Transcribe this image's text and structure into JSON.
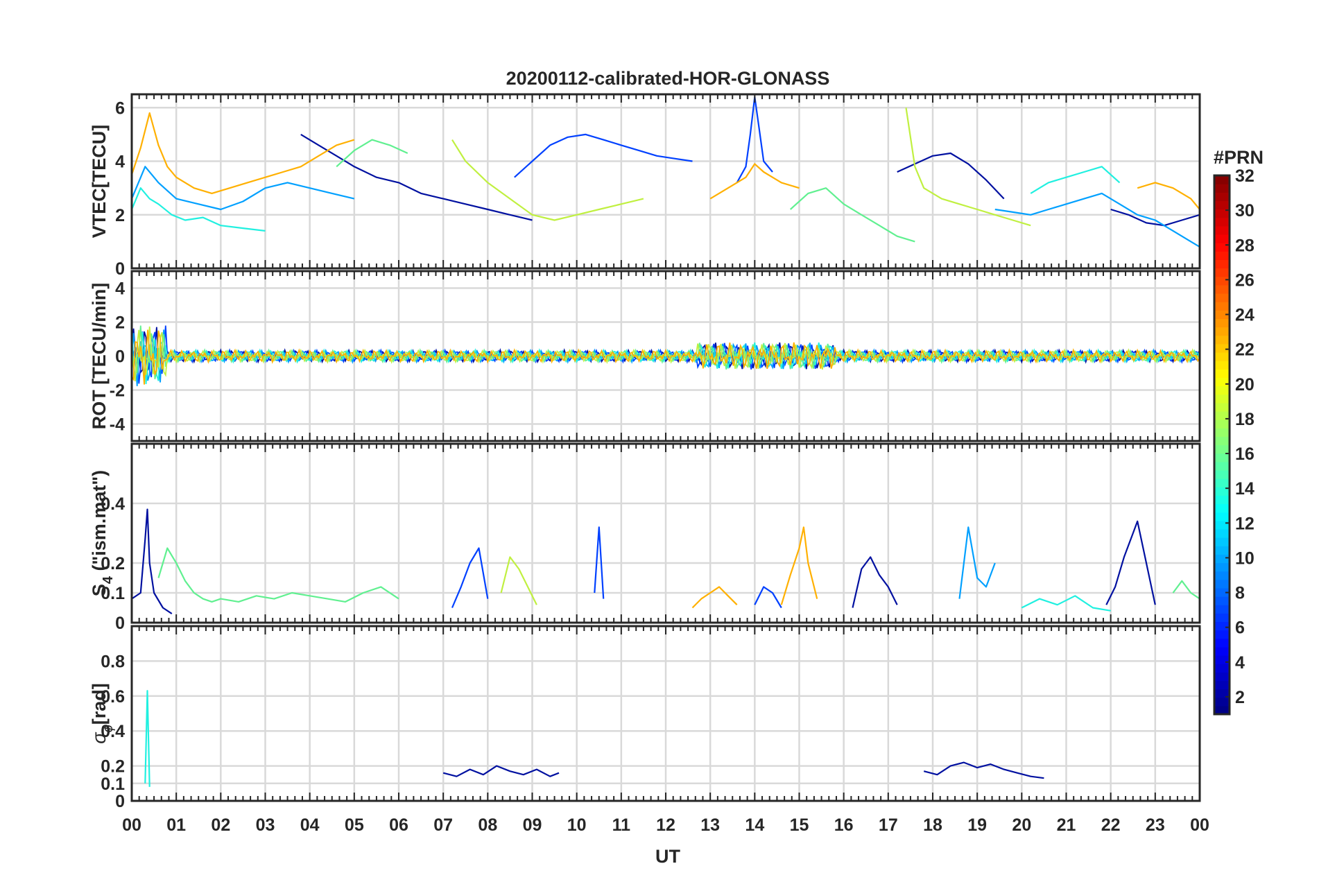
{
  "title": "20200112-calibrated-HOR-GLONASS",
  "x_axis": {
    "label": "UT",
    "ticks": [
      "00",
      "01",
      "02",
      "03",
      "04",
      "05",
      "06",
      "07",
      "08",
      "09",
      "10",
      "11",
      "12",
      "13",
      "14",
      "15",
      "16",
      "17",
      "18",
      "19",
      "20",
      "21",
      "22",
      "23",
      "00"
    ],
    "range": [
      0,
      24
    ],
    "unit": "hours"
  },
  "panels": [
    {
      "id": "vtec",
      "ylabel": "VTEC[TECU]",
      "ylim": [
        0,
        6.5
      ],
      "yticks": [
        "0",
        "2",
        "4",
        "6"
      ],
      "ytick_values": [
        0,
        2,
        4,
        6
      ]
    },
    {
      "id": "rot",
      "ylabel": "ROT [TECU/min]",
      "ylim": [
        -5,
        5
      ],
      "yticks": [
        "-4",
        "-2",
        "0",
        "2",
        "4"
      ],
      "ytick_values": [
        -4,
        -2,
        0,
        2,
        4
      ]
    },
    {
      "id": "s4",
      "ylabel_main": "S",
      "ylabel_sub": "4",
      "ylabel_rest": " (\"ism.mat\")",
      "ylim": [
        0,
        0.6
      ],
      "yticks": [
        "0",
        "0.1",
        "0.2",
        "0.4"
      ],
      "ytick_values": [
        0,
        0.1,
        0.2,
        0.4
      ]
    },
    {
      "id": "sigma",
      "ylabel_main": "σ",
      "ylabel_sub": "ϕ",
      "ylabel_rest": "[rad]",
      "ylim": [
        0,
        1.0
      ],
      "yticks": [
        "0",
        "0.1",
        "0.2",
        "0.4",
        "0.6",
        "0.8"
      ],
      "ytick_values": [
        0,
        0.1,
        0.2,
        0.4,
        0.6,
        0.8
      ]
    }
  ],
  "colorbar": {
    "title": "#PRN",
    "range": [
      1,
      32
    ],
    "ticks": [
      "2",
      "4",
      "6",
      "8",
      "10",
      "12",
      "14",
      "16",
      "18",
      "20",
      "22",
      "24",
      "26",
      "28",
      "30",
      "32"
    ],
    "tick_values": [
      2,
      4,
      6,
      8,
      10,
      12,
      14,
      16,
      18,
      20,
      22,
      24,
      26,
      28,
      30,
      32
    ],
    "colormap": "jet"
  },
  "chart_data": {
    "type": "line",
    "title": "20200112-calibrated-HOR-GLONASS",
    "xlabel": "UT",
    "xlim": [
      0,
      24
    ],
    "grid": true,
    "legend": "colorbar-right",
    "series": [
      {
        "prn": 2,
        "color": "#0010A0",
        "vtec": {
          "x": [
            3.8,
            4.2,
            4.6,
            5.0,
            5.5,
            6.0,
            6.5,
            7.0,
            7.5,
            8.0,
            8.5,
            9.0
          ],
          "y": [
            5.0,
            4.6,
            4.2,
            3.8,
            3.4,
            3.2,
            2.8,
            2.6,
            2.4,
            2.2,
            2.0,
            1.8
          ]
        },
        "vtec2": {
          "x": [
            17.2,
            17.6,
            18.0,
            18.4,
            18.8,
            19.2,
            19.6
          ],
          "y": [
            3.6,
            3.9,
            4.2,
            4.3,
            3.9,
            3.3,
            2.6
          ]
        },
        "vtec3": {
          "x": [
            22.0,
            22.4,
            22.8,
            23.2,
            23.6,
            24.0
          ],
          "y": [
            2.2,
            2.0,
            1.7,
            1.6,
            1.8,
            2.0
          ]
        },
        "s4": {
          "x": [
            0.0,
            0.2,
            0.3,
            0.35,
            0.4,
            0.5,
            0.7,
            0.9
          ],
          "y": [
            0.08,
            0.1,
            0.28,
            0.38,
            0.2,
            0.1,
            0.05,
            0.03
          ]
        },
        "s4b": {
          "x": [
            16.2,
            16.4,
            16.6,
            16.8,
            17.0,
            17.2
          ],
          "y": [
            0.05,
            0.18,
            0.22,
            0.16,
            0.12,
            0.06
          ]
        },
        "s4c": {
          "x": [
            21.9,
            22.1,
            22.3,
            22.5,
            22.6,
            22.8,
            23.0
          ],
          "y": [
            0.06,
            0.12,
            0.22,
            0.3,
            0.34,
            0.2,
            0.06
          ]
        },
        "sigma": {
          "x": [
            7.0,
            7.3,
            7.6,
            7.9,
            8.2,
            8.5,
            8.8,
            9.1,
            9.4,
            9.6
          ],
          "y": [
            0.16,
            0.14,
            0.18,
            0.15,
            0.2,
            0.17,
            0.15,
            0.18,
            0.14,
            0.16
          ]
        },
        "sigmab": {
          "x": [
            17.8,
            18.1,
            18.4,
            18.7,
            19.0,
            19.3,
            19.6,
            19.9,
            20.2,
            20.5
          ],
          "y": [
            0.17,
            0.15,
            0.2,
            0.22,
            0.19,
            0.21,
            0.18,
            0.16,
            0.14,
            0.13
          ]
        }
      },
      {
        "prn": 5,
        "color": "#0040FF",
        "vtec": {
          "x": [
            8.6,
            9.0,
            9.4,
            9.8,
            10.2,
            10.6,
            11.0,
            11.4,
            11.8,
            12.2,
            12.6
          ],
          "y": [
            3.4,
            4.0,
            4.6,
            4.9,
            5.0,
            4.8,
            4.6,
            4.4,
            4.2,
            4.1,
            4.0
          ]
        },
        "vtec2": {
          "x": [
            13.6,
            13.8,
            13.9,
            14.0,
            14.1,
            14.2,
            14.4
          ],
          "y": [
            3.2,
            3.8,
            5.0,
            6.4,
            5.2,
            4.0,
            3.6
          ]
        },
        "s4": {
          "x": [
            7.2,
            7.4,
            7.6,
            7.8,
            8.0
          ],
          "y": [
            0.05,
            0.12,
            0.2,
            0.25,
            0.08
          ]
        },
        "s4b": {
          "x": [
            14.0,
            14.2,
            14.4,
            14.6
          ],
          "y": [
            0.06,
            0.12,
            0.1,
            0.05
          ]
        },
        "s4c": {
          "x": [
            10.4,
            10.5,
            10.6
          ],
          "y": [
            0.1,
            0.32,
            0.08
          ]
        }
      },
      {
        "prn": 9,
        "color": "#00A0FF",
        "vtec": {
          "x": [
            0.0,
            0.3,
            0.6,
            1.0,
            1.5,
            2.0,
            2.5,
            3.0,
            3.5,
            4.0,
            4.5,
            5.0
          ],
          "y": [
            2.6,
            3.8,
            3.2,
            2.6,
            2.4,
            2.2,
            2.5,
            3.0,
            3.2,
            3.0,
            2.8,
            2.6
          ]
        },
        "vtec2": {
          "x": [
            19.4,
            19.8,
            20.2,
            20.6,
            21.0,
            21.4,
            21.8,
            22.2,
            22.6,
            23.0,
            23.4,
            23.8,
            24.0
          ],
          "y": [
            2.2,
            2.1,
            2.0,
            2.2,
            2.4,
            2.6,
            2.8,
            2.4,
            2.0,
            1.8,
            1.4,
            1.0,
            0.8
          ]
        },
        "s4": {
          "x": [
            18.6,
            18.8,
            19.0,
            19.2,
            19.4
          ],
          "y": [
            0.08,
            0.32,
            0.15,
            0.12,
            0.2
          ]
        }
      },
      {
        "prn": 13,
        "color": "#20F0E0",
        "vtec": {
          "x": [
            0.0,
            0.2,
            0.4,
            0.6,
            0.9,
            1.2,
            1.6,
            2.0,
            2.5,
            3.0
          ],
          "y": [
            2.2,
            3.0,
            2.6,
            2.4,
            2.0,
            1.8,
            1.9,
            1.6,
            1.5,
            1.4
          ]
        },
        "vtec2": {
          "x": [
            20.2,
            20.6,
            21.0,
            21.4,
            21.8,
            22.2
          ],
          "y": [
            2.8,
            3.2,
            3.4,
            3.6,
            3.8,
            3.2
          ]
        },
        "s4": {
          "x": [
            20.0,
            20.4,
            20.8,
            21.2,
            21.6,
            22.0
          ],
          "y": [
            0.05,
            0.08,
            0.06,
            0.09,
            0.05,
            0.04
          ]
        },
        "sigma": {
          "x": [
            0.3,
            0.35,
            0.4
          ],
          "y": [
            0.1,
            0.63,
            0.08
          ]
        }
      },
      {
        "prn": 16,
        "color": "#60F090",
        "vtec": {
          "x": [
            4.6,
            5.0,
            5.4,
            5.8,
            6.2
          ],
          "y": [
            3.8,
            4.4,
            4.8,
            4.6,
            4.3
          ]
        },
        "vtec2": {
          "x": [
            14.8,
            15.2,
            15.6,
            16.0,
            16.4,
            16.8,
            17.2,
            17.6
          ],
          "y": [
            2.2,
            2.8,
            3.0,
            2.4,
            2.0,
            1.6,
            1.2,
            1.0
          ]
        },
        "s4": {
          "x": [
            0.6,
            0.8,
            1.0,
            1.2,
            1.4,
            1.6,
            1.8,
            2.0,
            2.4,
            2.8,
            3.2,
            3.6,
            4.0,
            4.4,
            4.8,
            5.2,
            5.6,
            6.0
          ],
          "y": [
            0.15,
            0.25,
            0.2,
            0.14,
            0.1,
            0.08,
            0.07,
            0.08,
            0.07,
            0.09,
            0.08,
            0.1,
            0.09,
            0.08,
            0.07,
            0.1,
            0.12,
            0.08
          ]
        },
        "s4b": {
          "x": [
            23.4,
            23.6,
            23.8,
            24.0
          ],
          "y": [
            0.1,
            0.14,
            0.1,
            0.08
          ]
        }
      },
      {
        "prn": 19,
        "color": "#C0F040",
        "vtec": {
          "x": [
            7.2,
            7.5,
            8.0,
            8.5,
            9.0,
            9.5,
            10.0,
            10.5,
            11.0,
            11.5
          ],
          "y": [
            4.8,
            4.0,
            3.2,
            2.6,
            2.0,
            1.8,
            2.0,
            2.2,
            2.4,
            2.6
          ]
        },
        "vtec2": {
          "x": [
            17.4,
            17.6,
            17.8,
            18.2,
            18.6,
            19.0,
            19.4,
            19.8,
            20.2
          ],
          "y": [
            6.0,
            3.8,
            3.0,
            2.6,
            2.4,
            2.2,
            2.0,
            1.8,
            1.6
          ]
        },
        "s4": {
          "x": [
            8.3,
            8.5,
            8.7,
            8.9,
            9.1
          ],
          "y": [
            0.1,
            0.22,
            0.18,
            0.12,
            0.06
          ]
        }
      },
      {
        "prn": 22,
        "color": "#FFB000",
        "vtec": {
          "x": [
            0.0,
            0.2,
            0.4,
            0.6,
            0.8,
            1.0,
            1.4,
            1.8,
            2.2,
            2.6,
            3.0,
            3.4,
            3.8,
            4.2,
            4.6,
            5.0
          ],
          "y": [
            3.5,
            4.5,
            5.8,
            4.6,
            3.8,
            3.4,
            3.0,
            2.8,
            3.0,
            3.2,
            3.4,
            3.6,
            3.8,
            4.2,
            4.6,
            4.8
          ]
        },
        "vtec2": {
          "x": [
            13.0,
            13.4,
            13.8,
            14.0,
            14.2,
            14.6,
            15.0
          ],
          "y": [
            2.6,
            3.0,
            3.4,
            3.9,
            3.6,
            3.2,
            3.0
          ]
        },
        "vtec3": {
          "x": [
            22.6,
            23.0,
            23.4,
            23.8,
            24.0
          ],
          "y": [
            3.0,
            3.2,
            3.0,
            2.6,
            2.2
          ]
        },
        "s4": {
          "x": [
            14.6,
            14.8,
            15.0,
            15.1,
            15.2,
            15.4
          ],
          "y": [
            0.06,
            0.16,
            0.25,
            0.32,
            0.2,
            0.08
          ]
        },
        "s4b": {
          "x": [
            12.6,
            12.8,
            13.0,
            13.2,
            13.4,
            13.6
          ],
          "y": [
            0.05,
            0.08,
            0.1,
            0.12,
            0.09,
            0.06
          ]
        }
      }
    ]
  }
}
